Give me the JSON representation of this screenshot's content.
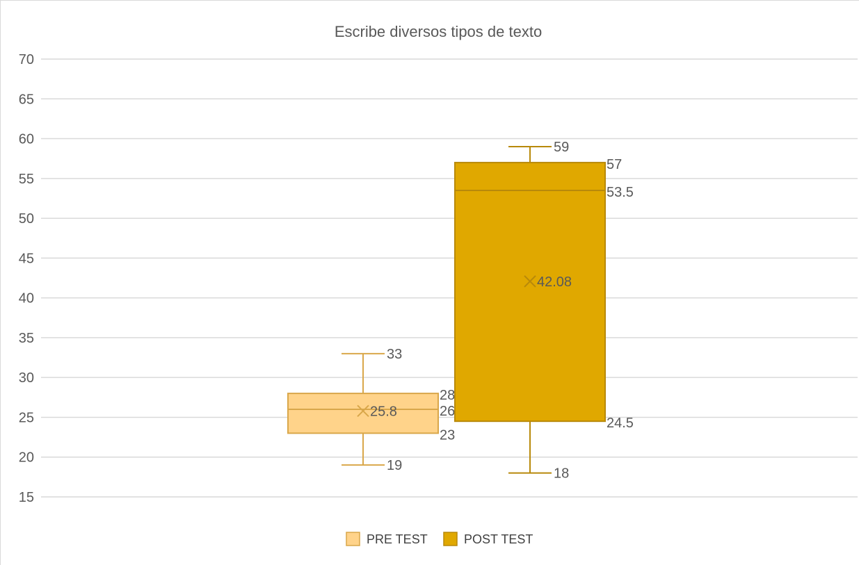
{
  "chart_data": {
    "type": "box",
    "title": "Escribe diversos tipos de texto",
    "ylim": [
      15,
      70
    ],
    "y_ticks": [
      15,
      20,
      25,
      30,
      35,
      40,
      45,
      50,
      55,
      60,
      65,
      70
    ],
    "grid": true,
    "legend_position": "bottom",
    "series": [
      {
        "name": "PRE TEST",
        "min": 19,
        "q1": 23,
        "median": 26,
        "q3": 28,
        "max": 33,
        "mean": 25.8,
        "labels": {
          "min": "19",
          "q1": "23",
          "median": "26",
          "q3": "28",
          "max": "33",
          "mean": "25.8"
        },
        "fill": "#FFD38A",
        "stroke": "#D9A74A"
      },
      {
        "name": "POST TEST",
        "min": 18,
        "q1": 24.5,
        "median": 53.5,
        "q3": 57,
        "max": 59,
        "mean": 42.08,
        "labels": {
          "min": "18",
          "q1": "24.5",
          "median": "53.5",
          "q3": "57",
          "max": "59",
          "mean": "42.08"
        },
        "fill": "#E0A800",
        "stroke": "#B8890A"
      }
    ]
  }
}
